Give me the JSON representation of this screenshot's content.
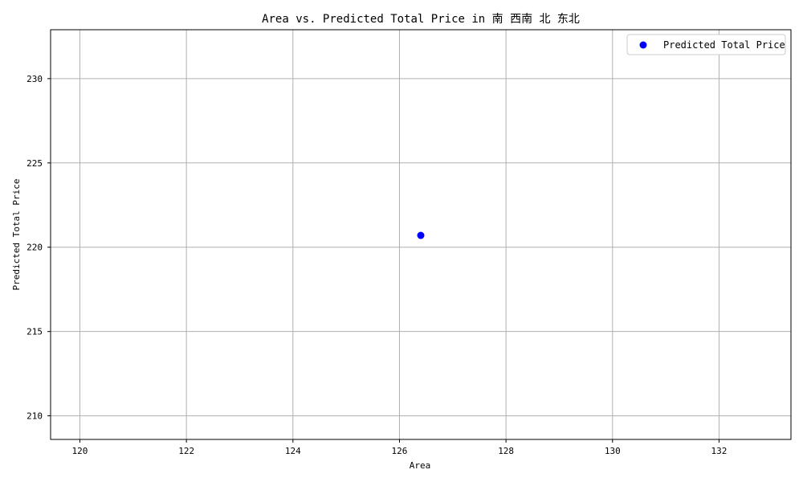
{
  "chart_data": {
    "type": "scatter",
    "title": "Area vs. Predicted Total Price in 南 西南 北 东北",
    "xlabel": "Area",
    "ylabel": "Predicted Total Price",
    "xlim": [
      119.45,
      133.35
    ],
    "ylim": [
      208.6,
      232.9
    ],
    "xticks": [
      120,
      122,
      124,
      126,
      128,
      130,
      132
    ],
    "yticks": [
      210,
      215,
      220,
      225,
      230
    ],
    "grid": true,
    "legend_position": "top-right",
    "series": [
      {
        "name": "Predicted Total Price",
        "color": "#0000ff",
        "points": [
          {
            "x": 126.4,
            "y": 220.7
          }
        ]
      }
    ]
  }
}
